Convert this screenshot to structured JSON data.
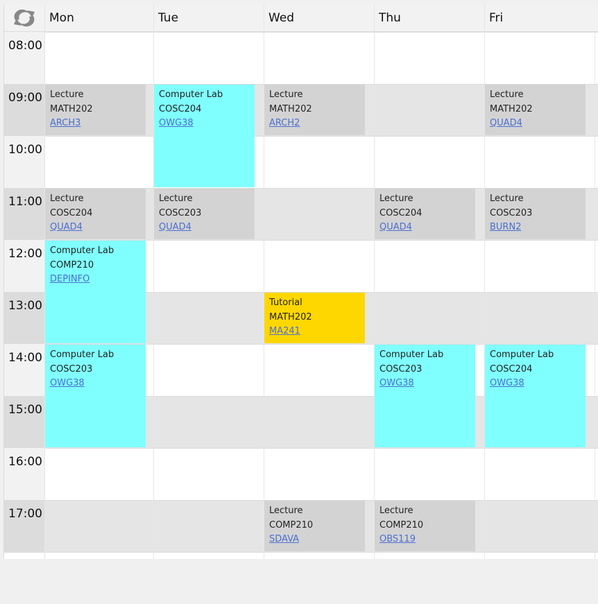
{
  "header": {
    "refresh_icon": "refresh-icon",
    "days": [
      "Mon",
      "Tue",
      "Wed",
      "Thu",
      "Fri"
    ]
  },
  "times": [
    "08:00",
    "09:00",
    "10:00",
    "11:00",
    "12:00",
    "13:00",
    "14:00",
    "15:00",
    "16:00",
    "17:00"
  ],
  "colors": {
    "Lecture": "#d3d3d3",
    "Computer Lab": "#80ffff",
    "Tutorial": "#ffd700"
  },
  "events": [
    {
      "day": 0,
      "start": "09:00",
      "hours": 1,
      "type": "Lecture",
      "course": "MATH202",
      "room": "ARCH3"
    },
    {
      "day": 0,
      "start": "11:00",
      "hours": 1,
      "type": "Lecture",
      "course": "COSC204",
      "room": "QUAD4"
    },
    {
      "day": 0,
      "start": "12:00",
      "hours": 2,
      "type": "Computer Lab",
      "course": "COMP210",
      "room": "DEPINFO"
    },
    {
      "day": 0,
      "start": "14:00",
      "hours": 2,
      "type": "Computer Lab",
      "course": "COSC203",
      "room": "OWG38"
    },
    {
      "day": 1,
      "start": "09:00",
      "hours": 2,
      "type": "Computer Lab",
      "course": "COSC204",
      "room": "OWG38"
    },
    {
      "day": 1,
      "start": "11:00",
      "hours": 1,
      "type": "Lecture",
      "course": "COSC203",
      "room": "QUAD4"
    },
    {
      "day": 2,
      "start": "09:00",
      "hours": 1,
      "type": "Lecture",
      "course": "MATH202",
      "room": "ARCH2"
    },
    {
      "day": 2,
      "start": "13:00",
      "hours": 1,
      "type": "Tutorial",
      "course": "MATH202",
      "room": "MA241"
    },
    {
      "day": 2,
      "start": "17:00",
      "hours": 1,
      "type": "Lecture",
      "course": "COMP210",
      "room": "SDAVA"
    },
    {
      "day": 3,
      "start": "11:00",
      "hours": 1,
      "type": "Lecture",
      "course": "COSC204",
      "room": "QUAD4"
    },
    {
      "day": 3,
      "start": "14:00",
      "hours": 2,
      "type": "Computer Lab",
      "course": "COSC203",
      "room": "OWG38"
    },
    {
      "day": 3,
      "start": "17:00",
      "hours": 1,
      "type": "Lecture",
      "course": "COMP210",
      "room": "OBS119"
    },
    {
      "day": 4,
      "start": "09:00",
      "hours": 1,
      "type": "Lecture",
      "course": "MATH202",
      "room": "QUAD4"
    },
    {
      "day": 4,
      "start": "11:00",
      "hours": 1,
      "type": "Lecture",
      "course": "COSC203",
      "room": "BURN2"
    },
    {
      "day": 4,
      "start": "14:00",
      "hours": 2,
      "type": "Computer Lab",
      "course": "COSC204",
      "room": "OWG38"
    }
  ]
}
